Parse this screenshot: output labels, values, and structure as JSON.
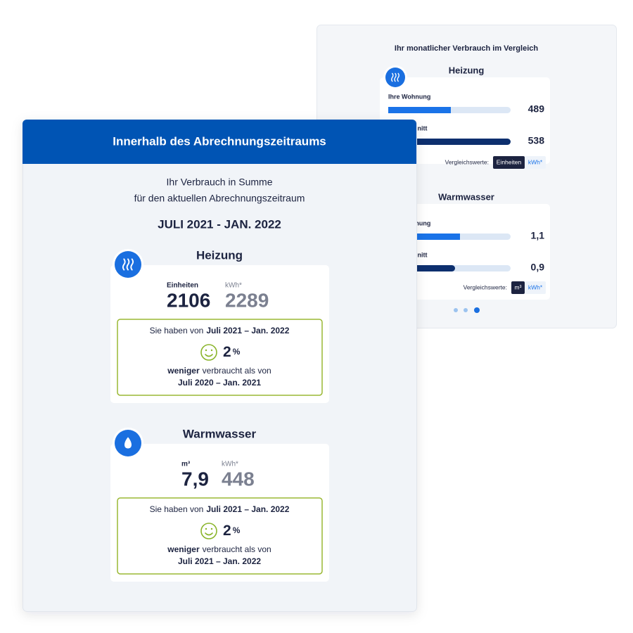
{
  "comparison_panel": {
    "title": "Ihr monatlicher Verbrauch im Vergleich",
    "sections": [
      {
        "title": "Heizung",
        "rows": [
          {
            "label": "Ihre Wohnung",
            "value": "489"
          },
          {
            "label": "Durchschnitt",
            "value": "538"
          }
        ],
        "toggle_label": "Vergleichswerte:",
        "toggle_options": [
          "Einheiten",
          "kWh*"
        ]
      },
      {
        "title": "Warmwasser",
        "rows": [
          {
            "label": "Ihre Wohnung",
            "value": "1,1"
          },
          {
            "label": "Durchschnitt",
            "value": "0,9"
          }
        ],
        "toggle_label": "Vergleichswerte:",
        "toggle_options": [
          "m³",
          "kWh*"
        ]
      }
    ]
  },
  "summary_panel": {
    "header": "Innerhalb des Abrechnungszeitraums",
    "subtitle_lines": [
      "Ihr Verbrauch in Summe",
      "für den aktuellen Abrechnungszeitraum"
    ],
    "period": "JULI 2021 - JAN. 2022",
    "sections": [
      {
        "title": "Heizung",
        "units": [
          {
            "unit": "Einheiten",
            "value": "2106"
          },
          {
            "unit": "kWh*",
            "value": "2289"
          }
        ],
        "comparison": {
          "prefix": "Sie haben von",
          "period": "Juli 2021 – Jan. 2022",
          "change": "2",
          "change_unit": "%",
          "emphasis": "weniger",
          "suffix": "verbraucht als von",
          "reference_period": "Juli 2020 – Jan. 2021"
        }
      },
      {
        "title": "Warmwasser",
        "units": [
          {
            "unit": "m³",
            "value": "7,9"
          },
          {
            "unit": "kWh*",
            "value": "448"
          }
        ],
        "comparison": {
          "prefix": "Sie haben von",
          "period": "Juli 2021 – Jan. 2022",
          "change": "2",
          "change_unit": "%",
          "emphasis": "weniger",
          "suffix": "verbraucht als von",
          "reference_period": "Juli 2021 – Jan. 2022"
        }
      }
    ]
  }
}
